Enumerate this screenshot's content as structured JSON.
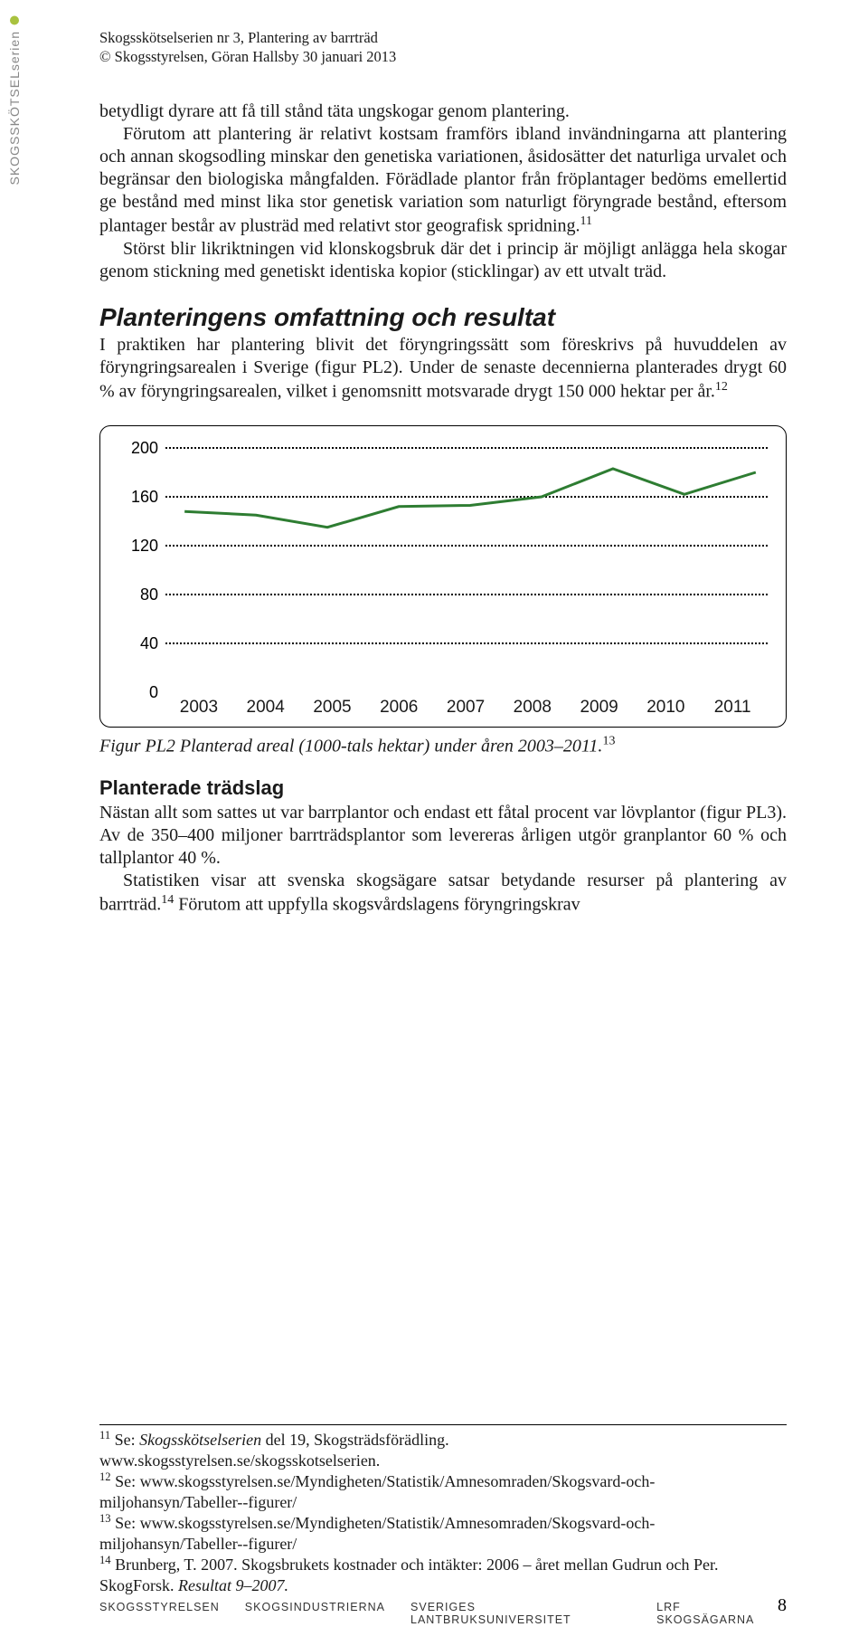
{
  "sidebar_label": "SKOGSSKÖTSELserien",
  "header": {
    "line1": "Skogsskötselserien nr 3, Plantering av barrträd",
    "line2": "© Skogsstyrelsen, Göran Hallsby 30 januari 2013"
  },
  "para1a": "betydligt dyrare att få till stånd täta ungskogar genom plantering.",
  "para1b": "Förutom att plantering är relativt kostsam framförs ibland invändningarna att plantering och annan skogsodling minskar den genetiska variationen, åsidosätter det naturliga urvalet och begränsar den biologiska mångfalden. Förädlade plantor från fröplantager bedöms emellertid ge bestånd med minst lika stor genetisk variation som naturligt föryngrade bestånd, eftersom plantager består av plusträd med relativt stor geografisk spridning.",
  "sup11": "11",
  "para1c": "Störst blir likriktningen vid klonskogsbruk där det i princip är möjligt anlägga hela skogar genom stickning med genetiskt identiska kopior (sticklingar) av ett utvalt träd.",
  "section_heading": "Planteringens omfattning och resultat",
  "para2": "I praktiken har plantering blivit det föryngringssätt som föreskrivs på huvuddelen av föryngringsarealen i Sverige (figur PL2). Under de senaste decennierna planterades drygt 60 % av föryngringsarealen, vilket i genomsnitt motsvarade drygt 150 000 hektar per år.",
  "sup12": "12",
  "chart": {
    "type": "line",
    "categories": [
      "2003",
      "2004",
      "2005",
      "2006",
      "2007",
      "2008",
      "2009",
      "2010",
      "2011"
    ],
    "values": [
      148,
      145,
      135,
      152,
      153,
      160,
      183,
      162,
      180
    ],
    "ylim": [
      0,
      200
    ],
    "yticks": [
      0,
      40,
      80,
      120,
      160,
      200
    ],
    "line_color": "#2e7d32",
    "line_width": 3,
    "grid_color": "#000000",
    "background_color": "#ffffff",
    "label_fontsize": 18
  },
  "chart_caption_prefix": "Figur PL2",
  "chart_caption_rest": " Planterad areal (1000-tals hektar) under åren 2003–2011.",
  "sup13": "13",
  "subsection_heading": "Planterade trädslag",
  "para3a": "Nästan allt som sattes ut var barrplantor och endast ett fåtal procent var lövplantor (figur PL3). Av de 350–400 miljoner barrträdsplantor som levereras årligen utgör granplantor 60 % och tallplantor 40 %.",
  "para3b_a": "Statistiken visar att svenska skogsägare satsar betydande resurser på plantering av barrträd.",
  "sup14": "14",
  "para3b_b": " Förutom att uppfylla skogsvårdslagens föryngringskrav",
  "footnotes": {
    "fn11_a": " Se: ",
    "fn11_b": "Skogsskötselserien",
    "fn11_c": " del 19, Skogsträdsförädling.",
    "fn11_url": "www.skogsstyrelsen.se/skogsskotselserien.",
    "fn12": " Se: www.skogsstyrelsen.se/Myndigheten/Statistik/Amnesomraden/Skogsvard-och-miljohansyn/Tabeller--figurer/",
    "fn13": " Se: www.skogsstyrelsen.se/Myndigheten/Statistik/Amnesomraden/Skogsvard-och-miljohansyn/Tabeller--figurer/",
    "fn14_a": " Brunberg, T. 2007. Skogsbrukets kostnader och intäkter: 2006 – året mellan Gudrun och Per. SkogForsk. ",
    "fn14_b": "Resultat 9–2007."
  },
  "footer": {
    "org1": "SKOGSSTYRELSEN",
    "org2": "SKOGSINDUSTRIERNA",
    "org3": "SVERIGES LANTBRUKSUNIVERSITET",
    "org4": "LRF SKOGSÄGARNA",
    "page": "8"
  }
}
